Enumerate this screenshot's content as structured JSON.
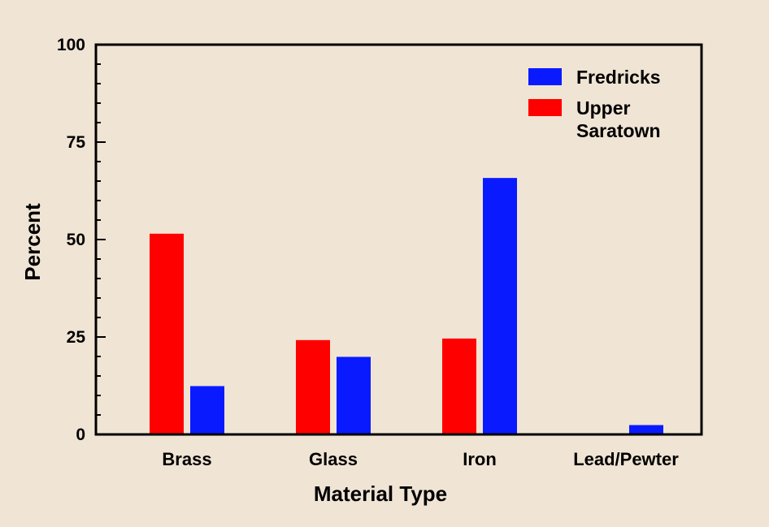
{
  "chart_data": {
    "type": "bar",
    "title": "",
    "xlabel": "Material Type",
    "ylabel": "Percent",
    "ylim": [
      0,
      100
    ],
    "yticks": [
      0,
      25,
      50,
      75,
      100
    ],
    "categories": [
      "Brass",
      "Glass",
      "Iron",
      "Lead/Pewter"
    ],
    "series": [
      {
        "name": "Upper Saratown",
        "color": "#ff0000",
        "values": [
          51.5,
          24.2,
          24.6,
          0
        ]
      },
      {
        "name": "Fredricks",
        "color": "#0a1aff",
        "values": [
          12.4,
          19.9,
          65.8,
          2.4
        ]
      }
    ],
    "legend": {
      "position": "top-right",
      "entries": [
        {
          "series": "Fredricks",
          "lines": [
            "Fredricks"
          ]
        },
        {
          "series": "Upper Saratown",
          "lines": [
            "Upper",
            "Saratown"
          ]
        }
      ]
    },
    "grid": false
  }
}
